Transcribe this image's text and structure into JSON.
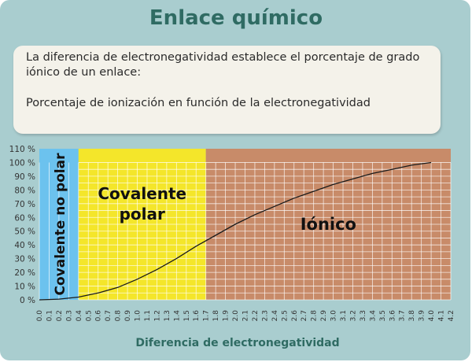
{
  "page": {
    "title": "Enlace químico",
    "info": {
      "line1": "La diferencia de electronegatividad establece el porcentaje de grado iónico de un enlace:",
      "line2": "Porcentaje de ionización en función de la electronegatividad"
    }
  },
  "colors": {
    "panel": "#a9cdcf",
    "title": "#2f6b63",
    "region_nonpolar": "#6cc2ee",
    "region_polar": "#f4e62a",
    "region_ionic": "#c88b69",
    "curve": "#1a1a1a"
  },
  "chart_data": {
    "type": "line",
    "xlabel": "Diferencia de electronegatividad",
    "ylabel": "",
    "xlim": [
      0,
      4.2
    ],
    "ylim": [
      0,
      110
    ],
    "grid": true,
    "x_ticks": [
      "0.0",
      "0.1",
      "0.2",
      "0.3",
      "0.4",
      "0.5",
      "0.6",
      "0.7",
      "0.8",
      "0.9",
      "1.0",
      "1.1",
      "1.2",
      "1.3",
      "1.4",
      "1.5",
      "1.6",
      "1.7",
      "1.8",
      "1.9",
      "2.0",
      "2.1",
      "2.2",
      "2.3",
      "2.4",
      "2.5",
      "2.6",
      "2.7",
      "2.8",
      "2.9",
      "3.0",
      "3.1",
      "3.2",
      "3.3",
      "3.4",
      "3.5",
      "3.6",
      "3.7",
      "3.8",
      "3.9",
      "4.0",
      "4.1",
      "4.2"
    ],
    "y_ticks": [
      "0 %",
      "10 %",
      "20 %",
      "30 %",
      "40 %",
      "50 %",
      "60 %",
      "70 %",
      "80 %",
      "90 %",
      "100 %",
      "110 %"
    ],
    "regions": [
      {
        "label": "Covalente no polar",
        "x_start": 0.0,
        "x_end": 0.4
      },
      {
        "label": "Covalente polar",
        "x_start": 0.4,
        "x_end": 1.7
      },
      {
        "label": "Iónico",
        "x_start": 1.7,
        "x_end": 4.2
      }
    ],
    "series": [
      {
        "x": [
          0.0,
          0.2,
          0.4,
          0.6,
          0.8,
          1.0,
          1.2,
          1.4,
          1.6,
          1.8,
          2.0,
          2.2,
          2.4,
          2.6,
          2.8,
          3.0,
          3.2,
          3.4,
          3.6,
          3.8,
          4.0
        ],
        "y": [
          0,
          0.5,
          2,
          5,
          9,
          15,
          22,
          30,
          39,
          47,
          55,
          62,
          68,
          74,
          79,
          84,
          88,
          92,
          95,
          98,
          100
        ]
      }
    ]
  }
}
